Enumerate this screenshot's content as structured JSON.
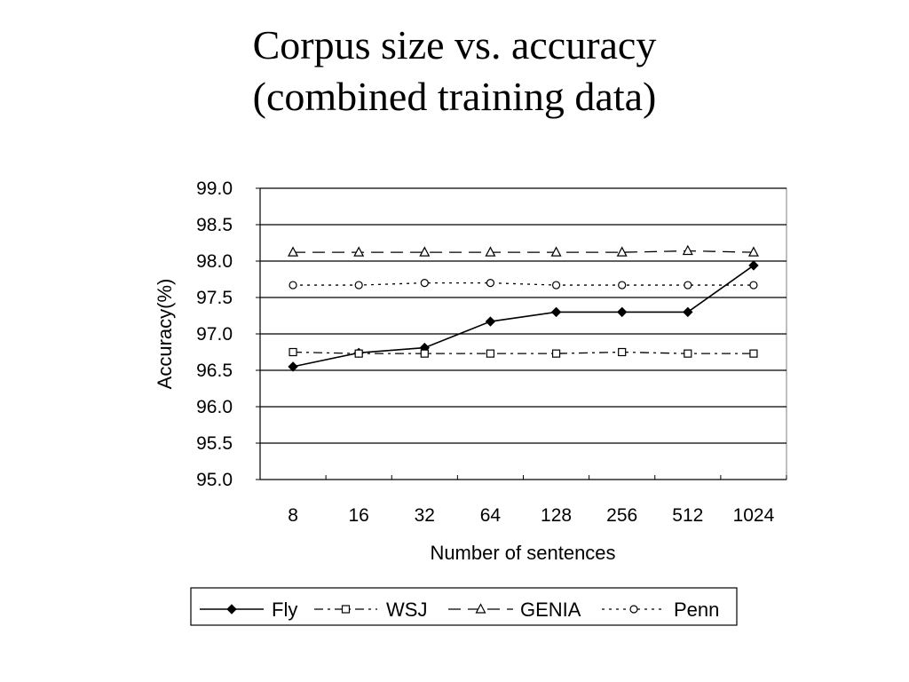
{
  "slide": {
    "title_line1": "Corpus size vs. accuracy",
    "title_line2": "(combined training data)"
  },
  "chart_data": {
    "type": "line",
    "categories": [
      "8",
      "16",
      "32",
      "64",
      "128",
      "256",
      "512",
      "1024"
    ],
    "xlabel": "Number of sentences",
    "ylabel": "Accuracy(%)",
    "ylim": [
      95.0,
      99.0
    ],
    "yticks": [
      "95.0",
      "95.5",
      "96.0",
      "96.5",
      "97.0",
      "97.5",
      "98.0",
      "98.5",
      "99.0"
    ],
    "grid": "horizontal",
    "legend_position": "bottom",
    "series": [
      {
        "name": "Fly",
        "line_style": "solid",
        "marker": "filled-diamond",
        "values": [
          96.55,
          96.74,
          96.81,
          97.17,
          97.3,
          97.3,
          97.3,
          97.94
        ]
      },
      {
        "name": "WSJ",
        "line_style": "dash-dot",
        "marker": "open-square",
        "values": [
          96.75,
          96.73,
          96.73,
          96.73,
          96.73,
          96.75,
          96.73,
          96.73
        ]
      },
      {
        "name": "GENIA",
        "line_style": "dashed",
        "marker": "open-triangle",
        "values": [
          98.12,
          98.12,
          98.12,
          98.12,
          98.12,
          98.12,
          98.14,
          98.12
        ]
      },
      {
        "name": "Penn",
        "line_style": "dotted",
        "marker": "open-circle",
        "values": [
          97.67,
          97.67,
          97.7,
          97.7,
          97.67,
          97.67,
          97.67,
          97.67
        ]
      }
    ],
    "colors": {
      "line": "#000000",
      "background": "#ffffff"
    }
  }
}
